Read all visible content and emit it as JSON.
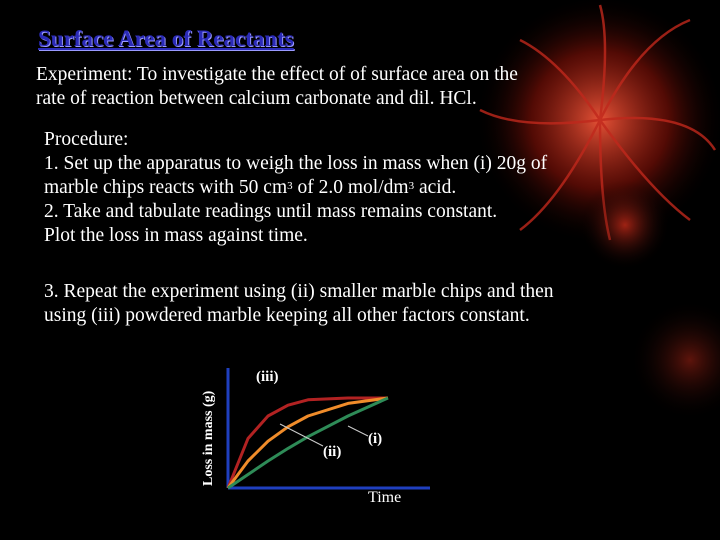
{
  "title": "Surface Area of Reactants",
  "experiment": {
    "line1": "Experiment: To investigate the effect of of surface area on the",
    "line2": "rate of reaction between calcium carbonate and dil. HCl."
  },
  "procedure": {
    "heading": "Procedure:",
    "step1_line1": "1. Set up the apparatus to weigh the loss in mass when (i) 20g of",
    "step1_line2_a": "marble chips reacts with 50 cm",
    "step1_sup1": "3",
    "step1_line2_b": " of 2.0 mol/dm",
    "step1_sup2": "3",
    "step1_line2_c": " acid.",
    "step2_line1": "2. Take and tabulate readings until mass remains constant.",
    "step2_line2": "Plot the loss in mass against time.",
    "step3_line1": "3. Repeat the experiment using (ii) smaller marble chips and then",
    "step3_line2": "using (iii) powdered marble keeping all other factors constant."
  },
  "colors": {
    "title": "#2b2bb8",
    "axis": "#1f3fbf",
    "curve_iii": "#b22222",
    "curve_ii": "#f08c2a",
    "curve_i": "#2e8b57",
    "decor": "#c0281c"
  },
  "chart_data": {
    "type": "line",
    "xlabel": "Time",
    "ylabel": "Loss in mass (g)",
    "series": [
      {
        "name": "(iii)",
        "values": [
          [
            0,
            0
          ],
          [
            1,
            0.55
          ],
          [
            2,
            0.8
          ],
          [
            3,
            0.92
          ],
          [
            4,
            0.98
          ],
          [
            6,
            1
          ],
          [
            8,
            1
          ]
        ]
      },
      {
        "name": "(ii)",
        "values": [
          [
            0,
            0
          ],
          [
            1,
            0.3
          ],
          [
            2,
            0.52
          ],
          [
            3,
            0.68
          ],
          [
            4,
            0.8
          ],
          [
            6,
            0.94
          ],
          [
            8,
            1
          ]
        ]
      },
      {
        "name": "(i)",
        "values": [
          [
            0,
            0
          ],
          [
            1,
            0.15
          ],
          [
            2,
            0.3
          ],
          [
            3,
            0.44
          ],
          [
            4,
            0.57
          ],
          [
            6,
            0.8
          ],
          [
            8,
            1
          ]
        ]
      }
    ],
    "annotations": [
      "(iii)",
      "(ii)",
      "(i)"
    ]
  }
}
